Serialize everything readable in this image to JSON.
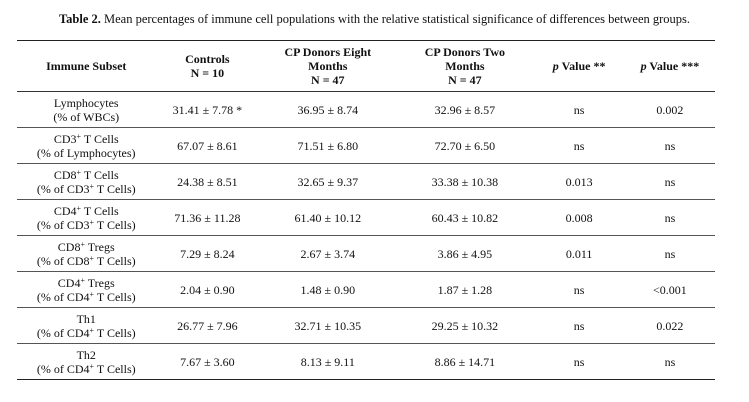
{
  "caption": {
    "label": "Table 2.",
    "text": "Mean percentages of immune cell populations with the relative statistical significance of differences between groups."
  },
  "headers": [
    {
      "lines": [
        "Immune Subset"
      ]
    },
    {
      "lines": [
        "Controls",
        "N = 10"
      ]
    },
    {
      "lines": [
        "CP Donors Eight",
        "Months",
        "N = 47"
      ]
    },
    {
      "lines": [
        "CP Donors Two",
        "Months",
        "N = 47"
      ]
    },
    {
      "p": "p",
      "rest": " Value **"
    },
    {
      "p": "p",
      "rest": " Value ***"
    }
  ],
  "rows": [
    {
      "subset": [
        {
          "t": "Lymphocytes"
        }
      ],
      "unit": [
        {
          "t": "(% of WBCs)"
        }
      ],
      "controls": "31.41 ± 7.78 *",
      "eight": "36.95 ± 8.74",
      "two": "32.96 ± 8.57",
      "p2": "ns",
      "p3": "0.002"
    },
    {
      "subset": [
        {
          "t": "CD3"
        },
        {
          "s": "+"
        },
        {
          "t": " T Cells"
        }
      ],
      "unit": [
        {
          "t": "(% of Lymphocytes)"
        }
      ],
      "controls": "67.07 ± 8.61",
      "eight": "71.51 ± 6.80",
      "two": "72.70 ± 6.50",
      "p2": "ns",
      "p3": "ns"
    },
    {
      "subset": [
        {
          "t": "CD8"
        },
        {
          "s": "+"
        },
        {
          "t": " T Cells"
        }
      ],
      "unit": [
        {
          "t": "(% of CD3"
        },
        {
          "s": "+"
        },
        {
          "t": " T Cells)"
        }
      ],
      "controls": "24.38 ± 8.51",
      "eight": "32.65 ± 9.37",
      "two": "33.38 ± 10.38",
      "p2": "0.013",
      "p3": "ns"
    },
    {
      "subset": [
        {
          "t": "CD4"
        },
        {
          "s": "+"
        },
        {
          "t": " T Cells"
        }
      ],
      "unit": [
        {
          "t": "(% of CD3"
        },
        {
          "s": "+"
        },
        {
          "t": " T Cells)"
        }
      ],
      "controls": "71.36 ± 11.28",
      "eight": "61.40 ± 10.12",
      "two": "60.43 ± 10.82",
      "p2": "0.008",
      "p3": "ns"
    },
    {
      "subset": [
        {
          "t": "CD8"
        },
        {
          "s": "+"
        },
        {
          "t": " Tregs"
        }
      ],
      "unit": [
        {
          "t": "(% of CD8"
        },
        {
          "s": "+"
        },
        {
          "t": " T Cells)"
        }
      ],
      "controls": "7.29 ± 8.24",
      "eight": "2.67 ± 3.74",
      "two": "3.86 ± 4.95",
      "p2": "0.011",
      "p3": "ns"
    },
    {
      "subset": [
        {
          "t": "CD4"
        },
        {
          "s": "+"
        },
        {
          "t": " Tregs"
        }
      ],
      "unit": [
        {
          "t": "(% of CD4"
        },
        {
          "s": "+"
        },
        {
          "t": " T Cells)"
        }
      ],
      "controls": "2.04 ± 0.90",
      "eight": "1.48 ± 0.90",
      "two": "1.87 ± 1.28",
      "p2": "ns",
      "p3": "<0.001"
    },
    {
      "subset": [
        {
          "t": "Th1"
        }
      ],
      "unit": [
        {
          "t": "(% of CD4"
        },
        {
          "s": "+"
        },
        {
          "t": " T Cells)"
        }
      ],
      "controls": "26.77 ± 7.96",
      "eight": "32.71 ± 10.35",
      "two": "29.25 ± 10.32",
      "p2": "ns",
      "p3": "0.022"
    },
    {
      "subset": [
        {
          "t": "Th2"
        }
      ],
      "unit": [
        {
          "t": "(% of CD4"
        },
        {
          "s": "+"
        },
        {
          "t": " T Cells)"
        }
      ],
      "controls": "7.67 ± 3.60",
      "eight": "8.13 ± 9.11",
      "two": "8.86 ± 14.71",
      "p2": "ns",
      "p3": "ns"
    }
  ]
}
